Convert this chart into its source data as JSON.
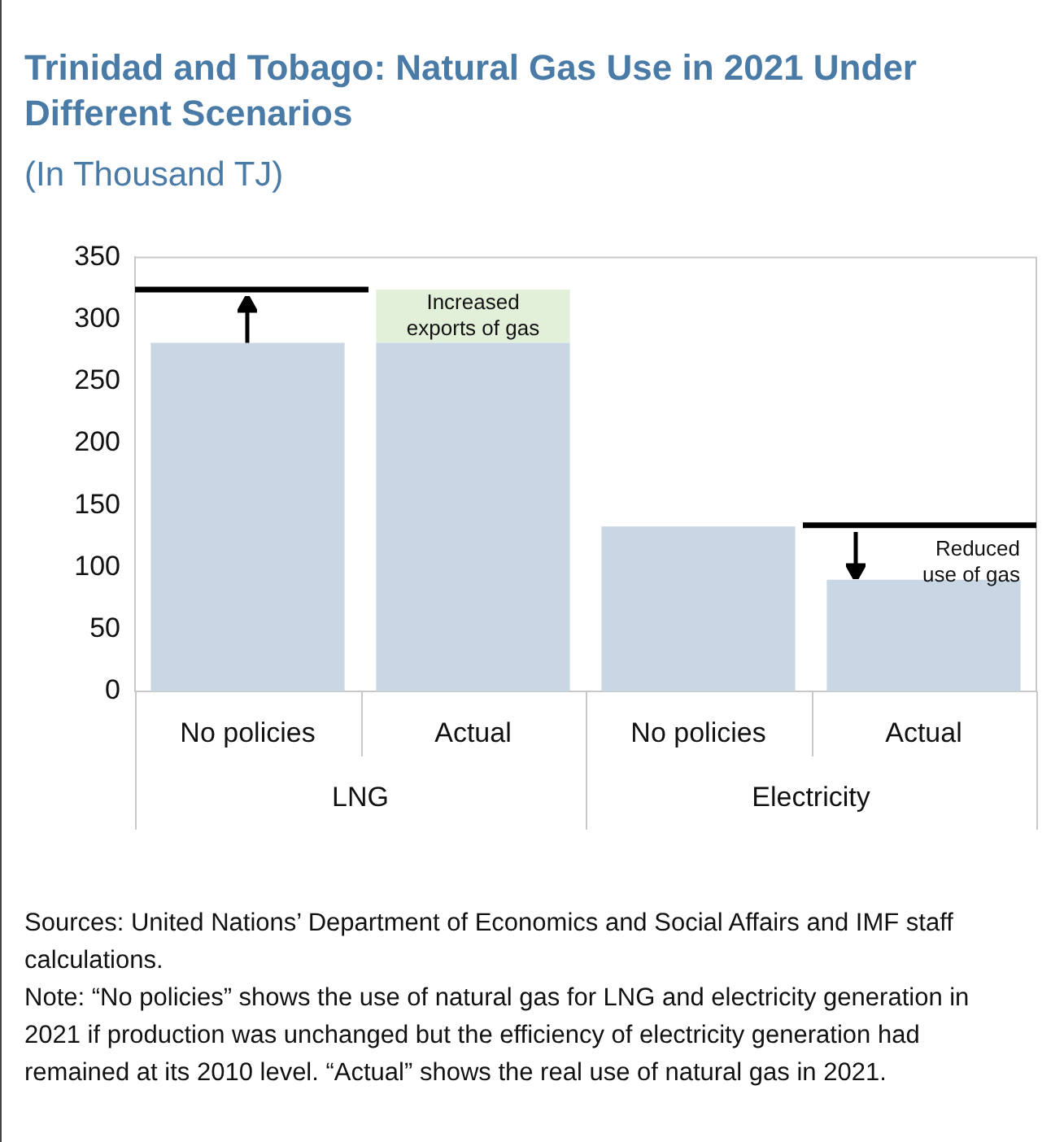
{
  "chart_data": {
    "type": "bar",
    "title": "Trinidad and Tobago: Natural Gas Use in 2021 Under Different Scenarios",
    "subtitle": "(In Thousand TJ)",
    "categories": [
      "No policies",
      "Actual",
      "No policies",
      "Actual"
    ],
    "stacked": true,
    "series": [
      {
        "color": "#c9d6e3",
        "values": [
          281,
          281,
          133,
          90
        ]
      },
      {
        "color": "#e2efd9",
        "values": [
          null,
          43,
          null,
          null
        ],
        "value_labels": [
          null,
          "Increased exports of gas",
          null,
          null
        ]
      }
    ],
    "ref_lines": [
      {
        "axis": "y",
        "value": 324,
        "color": "#000000"
      },
      {
        "axis": "y",
        "value": 134,
        "color": "#000000",
        "label": "Reduced use of gas"
      }
    ],
    "ylim": [
      0,
      350
    ],
    "yticks": [
      0,
      50,
      100,
      150,
      200,
      250,
      300,
      350
    ],
    "grid": false,
    "legend": false,
    "annotations": [
      "LNG",
      "Electricity",
      "Sources: United Nations’ Department of Economics and Social Affairs and IMF staff calculations.",
      "Note: “No policies” shows the use of natural gas for LNG and electricity generation in 2021 if production was unchanged but the efficiency of electricity generation had remained at its 2010 level. “Actual” shows the real use of natural gas in 2021."
    ]
  }
}
